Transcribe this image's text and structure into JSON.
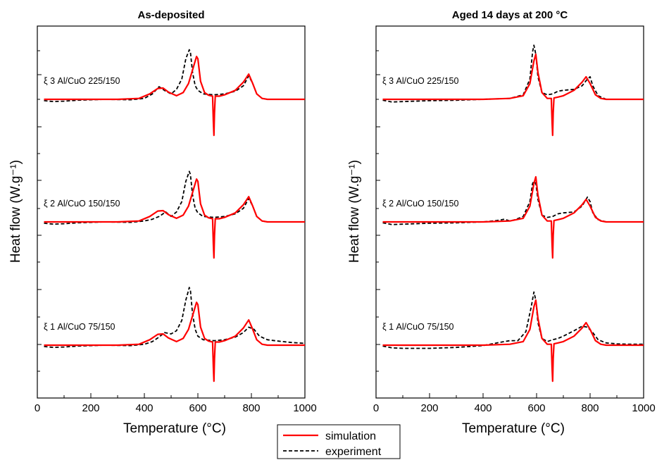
{
  "figure": {
    "legend": [
      {
        "label": "simulation",
        "color": "#ff0000",
        "style": "solid"
      },
      {
        "label": "experiment",
        "color": "#000000",
        "style": "dashed"
      }
    ],
    "legend_position": "bottom-center"
  },
  "chart_data": [
    {
      "type": "line",
      "title": "As-deposited",
      "xlabel": "Temperature (°C)",
      "ylabel": "Heat flow (W.g⁻¹)",
      "xlim": [
        0,
        1000
      ],
      "xticks": [
        "0",
        "200",
        "400",
        "600",
        "800",
        "1000"
      ],
      "yticks_labeled": false,
      "grid": false,
      "traces": [
        {
          "label": "ξ 3 Al/CuO 225/150",
          "simulation": {
            "x": [
              25,
              300,
              380,
              420,
              450,
              470,
              490,
              520,
              545,
              565,
              580,
              595,
              600,
              610,
              625,
              640,
              655,
              658,
              660,
              662,
              665,
              680,
              700,
              740,
              770,
              790,
              805,
              820,
              840,
              860,
              900,
              1000
            ],
            "y": [
              0,
              0,
              0.02,
              0.12,
              0.24,
              0.25,
              0.16,
              0.08,
              0.15,
              0.35,
              0.65,
              0.95,
              0.9,
              0.4,
              0.15,
              0.09,
              0.07,
              -0.5,
              -0.8,
              -0.3,
              0.07,
              0.07,
              0.1,
              0.2,
              0.38,
              0.56,
              0.35,
              0.12,
              0.02,
              0,
              0,
              0
            ]
          },
          "experiment": {
            "x": [
              25,
              60,
              100,
              150,
              250,
              350,
              400,
              430,
              455,
              480,
              500,
              520,
              540,
              555,
              568,
              572,
              580,
              590,
              600,
              620,
              660,
              700,
              740,
              770,
              790,
              805,
              820,
              840,
              860,
              900,
              1000
            ],
            "y": [
              -0.03,
              -0.05,
              -0.04,
              -0.02,
              0,
              -0.01,
              0.02,
              0.12,
              0.28,
              0.18,
              0.12,
              0.22,
              0.45,
              0.9,
              1.1,
              1.05,
              0.6,
              0.3,
              0.2,
              0.12,
              0.1,
              0.12,
              0.18,
              0.3,
              0.52,
              0.35,
              0.12,
              0.02,
              0,
              0,
              0
            ]
          }
        },
        {
          "label": "ξ 2 Al/CuO 150/150",
          "simulation": {
            "x": [
              25,
              300,
              380,
              420,
              450,
              470,
              490,
              520,
              545,
              565,
              580,
              595,
              600,
              610,
              625,
              640,
              655,
              658,
              660,
              662,
              665,
              680,
              700,
              740,
              770,
              790,
              805,
              820,
              840,
              860,
              900,
              1000
            ],
            "y": [
              0,
              0,
              0.02,
              0.12,
              0.24,
              0.25,
              0.16,
              0.08,
              0.15,
              0.35,
              0.65,
              0.95,
              0.9,
              0.4,
              0.15,
              0.09,
              0.07,
              -0.5,
              -0.8,
              -0.3,
              0.07,
              0.07,
              0.1,
              0.2,
              0.38,
              0.56,
              0.35,
              0.12,
              0.02,
              0,
              0,
              0
            ]
          },
          "experiment": {
            "x": [
              25,
              60,
              100,
              150,
              250,
              350,
              400,
              430,
              455,
              480,
              500,
              520,
              540,
              555,
              568,
              572,
              580,
              590,
              600,
              620,
              660,
              700,
              740,
              770,
              790,
              805,
              820,
              840,
              860,
              900,
              1000
            ],
            "y": [
              -0.03,
              -0.05,
              -0.04,
              -0.02,
              0,
              -0.01,
              0.02,
              0.06,
              0.12,
              0.22,
              0.12,
              0.22,
              0.45,
              0.9,
              1.12,
              1.05,
              0.6,
              0.3,
              0.2,
              0.12,
              0.1,
              0.12,
              0.18,
              0.3,
              0.52,
              0.35,
              0.12,
              0.02,
              0,
              0,
              0
            ]
          }
        },
        {
          "label": "ξ 1 Al/CuO 75/150",
          "simulation": {
            "x": [
              25,
              300,
              380,
              420,
              450,
              470,
              490,
              520,
              545,
              565,
              580,
              595,
              600,
              610,
              625,
              640,
              655,
              658,
              660,
              662,
              665,
              680,
              700,
              740,
              770,
              790,
              805,
              820,
              840,
              860,
              900,
              1000
            ],
            "y": [
              0,
              0,
              0.02,
              0.12,
              0.24,
              0.25,
              0.16,
              0.08,
              0.15,
              0.35,
              0.65,
              0.95,
              0.9,
              0.4,
              0.15,
              0.09,
              0.07,
              -0.5,
              -0.8,
              -0.3,
              0.07,
              0.07,
              0.1,
              0.2,
              0.38,
              0.56,
              0.35,
              0.12,
              0.02,
              0,
              0,
              0
            ]
          },
          "experiment": {
            "x": [
              25,
              60,
              100,
              150,
              250,
              350,
              400,
              430,
              455,
              475,
              500,
              520,
              540,
              555,
              568,
              572,
              580,
              590,
              600,
              620,
              660,
              700,
              740,
              770,
              790,
              810,
              830,
              860,
              900,
              950,
              1000
            ],
            "y": [
              -0.03,
              -0.05,
              -0.04,
              -0.02,
              0,
              -0.01,
              0.02,
              0.08,
              0.18,
              0.28,
              0.25,
              0.32,
              0.55,
              1.0,
              1.28,
              1.22,
              0.7,
              0.35,
              0.2,
              0.12,
              0.1,
              0.12,
              0.18,
              0.28,
              0.4,
              0.35,
              0.2,
              0.12,
              0.09,
              0.06,
              0.04
            ]
          }
        }
      ]
    },
    {
      "type": "line",
      "title": "Aged 14 days at 200 °C",
      "xlabel": "Temperature (°C)",
      "ylabel": "Heat flow (W.g⁻¹)",
      "xlim": [
        0,
        1000
      ],
      "xticks": [
        "0",
        "200",
        "400",
        "600",
        "800",
        "1000"
      ],
      "yticks_labeled": false,
      "grid": false,
      "traces": [
        {
          "label": "ξ 3 Al/CuO 225/150",
          "simulation": {
            "x": [
              25,
              400,
              500,
              550,
              575,
              590,
              597,
              605,
              620,
              640,
              655,
              658,
              660,
              662,
              665,
              680,
              700,
              740,
              770,
              785,
              800,
              820,
              840,
              860,
              900,
              1000
            ],
            "y": [
              0,
              0,
              0.02,
              0.08,
              0.35,
              0.85,
              1.0,
              0.6,
              0.15,
              0.02,
              0.02,
              -0.5,
              -0.8,
              -0.3,
              0.03,
              0.05,
              0.08,
              0.2,
              0.38,
              0.5,
              0.35,
              0.1,
              0.02,
              0,
              0,
              0
            ]
          },
          "experiment": {
            "x": [
              25,
              60,
              100,
              200,
              300,
              400,
              500,
              550,
              575,
              585,
              590,
              597,
              605,
              620,
              640,
              660,
              680,
              700,
              740,
              770,
              790,
              800,
              810,
              830,
              860,
              900,
              1000
            ],
            "y": [
              -0.02,
              -0.06,
              -0.05,
              -0.03,
              -0.02,
              0,
              0.02,
              0.1,
              0.45,
              1.05,
              1.2,
              1.0,
              0.5,
              0.15,
              0.1,
              0.12,
              0.18,
              0.2,
              0.22,
              0.3,
              0.45,
              0.5,
              0.3,
              0.08,
              0,
              0,
              0
            ]
          }
        },
        {
          "label": "ξ 2 Al/CuO 150/150",
          "simulation": {
            "x": [
              25,
              400,
              500,
              550,
              575,
              590,
              597,
              605,
              620,
              640,
              655,
              658,
              660,
              662,
              665,
              680,
              700,
              740,
              770,
              785,
              800,
              820,
              840,
              860,
              900,
              1000
            ],
            "y": [
              0,
              0,
              0.02,
              0.08,
              0.35,
              0.85,
              1.0,
              0.6,
              0.15,
              0.02,
              0.02,
              -0.5,
              -0.8,
              -0.3,
              0.03,
              0.05,
              0.08,
              0.2,
              0.38,
              0.5,
              0.35,
              0.1,
              0.02,
              0,
              0,
              0
            ]
          },
          "experiment": {
            "x": [
              25,
              60,
              100,
              200,
              300,
              400,
              450,
              480,
              500,
              520,
              550,
              575,
              585,
              590,
              597,
              605,
              620,
              640,
              660,
              680,
              700,
              740,
              770,
              790,
              800,
              810,
              830,
              860,
              900,
              1000
            ],
            "y": [
              -0.02,
              -0.06,
              -0.05,
              -0.03,
              -0.02,
              0,
              0.03,
              0.06,
              0.02,
              0.05,
              0.12,
              0.45,
              0.85,
              0.9,
              0.85,
              0.5,
              0.15,
              0.1,
              0.12,
              0.18,
              0.2,
              0.22,
              0.35,
              0.55,
              0.45,
              0.2,
              0.05,
              0,
              0,
              0
            ]
          }
        },
        {
          "label": "ξ 1 Al/CuO 75/150",
          "simulation": {
            "x": [
              25,
              400,
              500,
              550,
              575,
              590,
              597,
              605,
              620,
              640,
              655,
              658,
              660,
              662,
              665,
              680,
              700,
              740,
              770,
              785,
              800,
              820,
              840,
              860,
              900,
              1000
            ],
            "y": [
              0,
              0,
              0.02,
              0.08,
              0.35,
              0.85,
              1.0,
              0.6,
              0.15,
              0.02,
              0.02,
              -0.5,
              -0.8,
              -0.3,
              0.03,
              0.05,
              0.08,
              0.2,
              0.38,
              0.5,
              0.35,
              0.1,
              0.02,
              0,
              0,
              0
            ]
          },
          "experiment": {
            "x": [
              25,
              60,
              100,
              200,
              300,
              400,
              460,
              500,
              530,
              560,
              580,
              590,
              597,
              605,
              620,
              640,
              660,
              680,
              700,
              740,
              770,
              790,
              810,
              830,
              860,
              900,
              950,
              1000
            ],
            "y": [
              -0.02,
              -0.06,
              -0.07,
              -0.07,
              -0.05,
              -0.01,
              0.06,
              0.1,
              0.1,
              0.3,
              0.85,
              1.18,
              1.0,
              0.5,
              0.15,
              0.08,
              0.12,
              0.15,
              0.2,
              0.32,
              0.42,
              0.4,
              0.28,
              0.12,
              0.05,
              0.03,
              0.02,
              0.02
            ]
          }
        }
      ]
    }
  ]
}
